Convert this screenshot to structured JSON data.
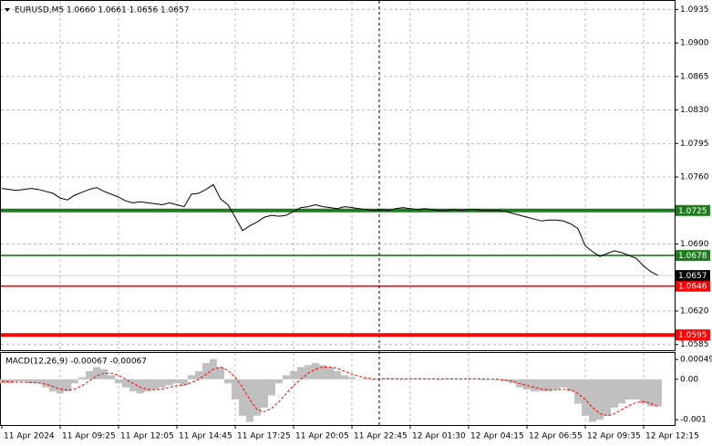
{
  "chart_data": [
    {
      "type": "line",
      "title": "EURUSD,M5  1.0660 1.0661 1.0656 1.0657",
      "color": "#000000",
      "x": [
        0,
        1,
        2,
        3,
        4,
        5,
        6,
        7,
        8,
        9,
        10,
        11,
        12,
        13,
        14,
        15,
        16,
        17,
        18,
        19,
        20,
        21,
        22,
        23,
        24,
        25,
        26,
        27,
        28,
        29,
        30,
        31,
        32,
        33,
        34,
        35,
        36,
        37,
        38,
        39,
        40,
        41,
        42,
        43,
        44,
        45,
        46,
        47,
        48,
        49,
        50,
        51,
        52,
        53,
        54,
        55,
        56,
        57,
        58,
        59,
        60,
        61,
        62,
        63,
        64,
        65,
        66,
        67,
        68,
        69,
        70,
        71,
        72,
        73,
        74,
        75,
        76,
        77,
        78,
        79,
        80,
        81,
        82,
        83,
        84,
        85,
        86,
        87,
        88,
        89,
        90
      ],
      "values": [
        1.0748,
        1.0747,
        1.0746,
        1.0747,
        1.0748,
        1.0747,
        1.0745,
        1.0743,
        1.0738,
        1.0736,
        1.0741,
        1.0744,
        1.0747,
        1.0749,
        1.0745,
        1.0742,
        1.0739,
        1.0735,
        1.0733,
        1.0734,
        1.0733,
        1.0732,
        1.0731,
        1.0733,
        1.0731,
        1.0729,
        1.0742,
        1.0743,
        1.0747,
        1.0752,
        1.0737,
        1.0731,
        1.0718,
        1.0704,
        1.0709,
        1.0713,
        1.0718,
        1.072,
        1.0719,
        1.072,
        1.0724,
        1.0728,
        1.0729,
        1.0731,
        1.0729,
        1.0728,
        1.0727,
        1.0729,
        1.0728,
        1.0727,
        1.0726,
        1.0725,
        1.0726,
        1.0725,
        1.0727,
        1.0728,
        1.0727,
        1.0726,
        1.0727,
        1.0726,
        1.0725,
        1.0725,
        1.0726,
        1.0725,
        1.0726,
        1.0726,
        1.0725,
        1.0725,
        1.0725,
        1.0724,
        1.0722,
        1.072,
        1.0718,
        1.0716,
        1.0714,
        1.0715,
        1.0715,
        1.0714,
        1.0711,
        1.0706,
        1.0688,
        1.0682,
        1.0677,
        1.068,
        1.0683,
        1.0681,
        1.0678,
        1.0675,
        1.0667,
        1.0661,
        1.0657
      ],
      "xlim": [
        0,
        92
      ],
      "ylim": [
        1.0579,
        1.0943
      ],
      "yticks": [
        1.0935,
        {
          "value": 1.09,
          "label": "1.0900"
        },
        1.0865,
        {
          "value": 1.083,
          "label": "1.0830"
        },
        1.0795,
        {
          "value": 1.076,
          "label": "1.0760"
        },
        {
          "value": 1.069,
          "label": "1.0690"
        },
        {
          "value": 1.062,
          "label": "1.0620"
        },
        1.0585
      ],
      "grid": true,
      "levels": [
        {
          "value": 1.0725,
          "color": "#1e7b1e",
          "style": "thick"
        },
        {
          "value": 1.0678,
          "color": "#1e7b1e",
          "style": "thin"
        },
        {
          "value": 1.0646,
          "color": "#ff0000",
          "style": "thin"
        },
        {
          "value": 1.0595,
          "color": "#ff0000",
          "style": "thick"
        }
      ],
      "last_price": 1.0657
    },
    {
      "type": "bar",
      "title": "MACD(12,26,9) -0.00067 -0.00067",
      "x": [
        0,
        1,
        2,
        3,
        4,
        5,
        6,
        7,
        8,
        9,
        10,
        11,
        12,
        13,
        14,
        15,
        16,
        17,
        18,
        19,
        20,
        21,
        22,
        23,
        24,
        25,
        26,
        27,
        28,
        29,
        30,
        31,
        32,
        33,
        34,
        35,
        36,
        37,
        38,
        39,
        40,
        41,
        42,
        43,
        44,
        45,
        46,
        47,
        48,
        49,
        50,
        51,
        52,
        53,
        54,
        55,
        56,
        57,
        58,
        59,
        60,
        61,
        62,
        63,
        64,
        65,
        66,
        67,
        68,
        69,
        70,
        71,
        72,
        73,
        74,
        75,
        76,
        77,
        78,
        79,
        80,
        81,
        82,
        83,
        84,
        85,
        86,
        87,
        88,
        89,
        90
      ],
      "xlim": [
        0,
        92
      ],
      "xticks": [
        {
          "value": 0,
          "label": "11 Apr 2024"
        },
        {
          "value": 8,
          "label": "11 Apr 09:25"
        },
        {
          "value": 16,
          "label": "11 Apr 12:05"
        },
        {
          "value": 24,
          "label": "11 Apr 14:45"
        },
        {
          "value": 32,
          "label": "11 Apr 17:25"
        },
        {
          "value": 40,
          "label": "11 Apr 20:05"
        },
        {
          "value": 48,
          "label": "11 Apr 22:45"
        },
        {
          "value": 56,
          "label": "12 Apr 01:30"
        },
        {
          "value": 64,
          "label": "12 Apr 04:15"
        },
        {
          "value": 72,
          "label": "12 Apr 06:55"
        },
        {
          "value": 80,
          "label": "12 Apr 09:35"
        },
        {
          "value": 88,
          "label": "12 Apr 12:15"
        }
      ],
      "ylim": [
        -0.00113,
        0.00065
      ],
      "yticks": [
        0.00049,
        {
          "value": 0,
          "label": "0.00"
        },
        -0.001
      ],
      "series": [
        {
          "type": "bar",
          "color": "#c0c0c0",
          "values": [
            -0.0001,
            -0.0001,
            -5e-05,
            -5e-05,
            -0.0001,
            -0.0001,
            -0.0002,
            -0.0003,
            -0.00035,
            -0.0003,
            -0.0001,
            5e-05,
            0.0002,
            0.0003,
            0.00025,
            0.0001,
            -0.0001,
            -0.0002,
            -0.0003,
            -0.00035,
            -0.0003,
            -0.00025,
            -0.0002,
            -0.00015,
            -0.0001,
            -0.00015,
            0.0001,
            0.0002,
            0.0004,
            0.0005,
            0.0003,
            -0.0001,
            -0.0005,
            -0.0009,
            -0.00105,
            -0.0009,
            -0.0007,
            -0.0004,
            -0.0001,
            0.0001,
            0.0002,
            0.0003,
            0.00035,
            0.0004,
            0.00035,
            0.0003,
            0.0002,
            0.0001,
            5e-05,
            0,
            2e-05,
            -2e-05,
            2e-05,
            3e-05,
            2e-05,
            -2e-05,
            2e-05,
            3e-05,
            2e-05,
            1e-05,
            -2e-05,
            2e-05,
            1e-05,
            -1e-05,
            2e-05,
            1e-05,
            -2e-05,
            -1e-05,
            -2e-05,
            -5e-05,
            -0.0001,
            -0.0002,
            -0.00025,
            -0.0003,
            -0.0003,
            -0.0003,
            -0.00025,
            -0.0002,
            -0.0003,
            -0.0006,
            -0.0009,
            -0.00105,
            -0.001,
            -0.0009,
            -0.0007,
            -0.0006,
            -0.0005,
            -0.0005,
            -0.0006,
            -0.00067,
            -0.00067
          ]
        },
        {
          "type": "line",
          "color": "#ff0000",
          "dash": true,
          "values": [
            -5e-05,
            -6e-05,
            -7e-05,
            -7e-05,
            -8e-05,
            -9e-05,
            -0.00012,
            -0.00018,
            -0.00024,
            -0.00027,
            -0.00024,
            -0.00016,
            -4e-05,
            8e-05,
            0.00015,
            0.00015,
            0.0001,
            0,
            -0.0001,
            -0.0002,
            -0.00025,
            -0.00026,
            -0.00024,
            -0.0002,
            -0.00016,
            -0.00014,
            -8e-05,
            0,
            0.00012,
            0.00025,
            0.0003,
            0.00022,
            5e-05,
            -0.0002,
            -0.0005,
            -0.00075,
            -0.0008,
            -0.00072,
            -0.00055,
            -0.00035,
            -0.00015,
            0,
            0.00015,
            0.00025,
            0.0003,
            0.0003,
            0.00027,
            0.0002,
            0.00013,
            7e-05,
            3e-05,
            1e-05,
            1e-05,
            1e-05,
            1e-05,
            1e-05,
            1e-05,
            1e-05,
            1e-05,
            1e-05,
            1e-05,
            1e-05,
            1e-05,
            1e-05,
            1e-05,
            1e-05,
            1e-05,
            0,
            0,
            -2e-05,
            -5e-05,
            -0.0001,
            -0.00015,
            -0.0002,
            -0.00024,
            -0.00026,
            -0.00026,
            -0.00025,
            -0.00026,
            -0.00035,
            -0.0005,
            -0.0007,
            -0.00085,
            -0.0009,
            -0.00085,
            -0.00075,
            -0.00065,
            -0.00057,
            -0.00055,
            -0.0006,
            -0.00067
          ]
        }
      ]
    }
  ]
}
